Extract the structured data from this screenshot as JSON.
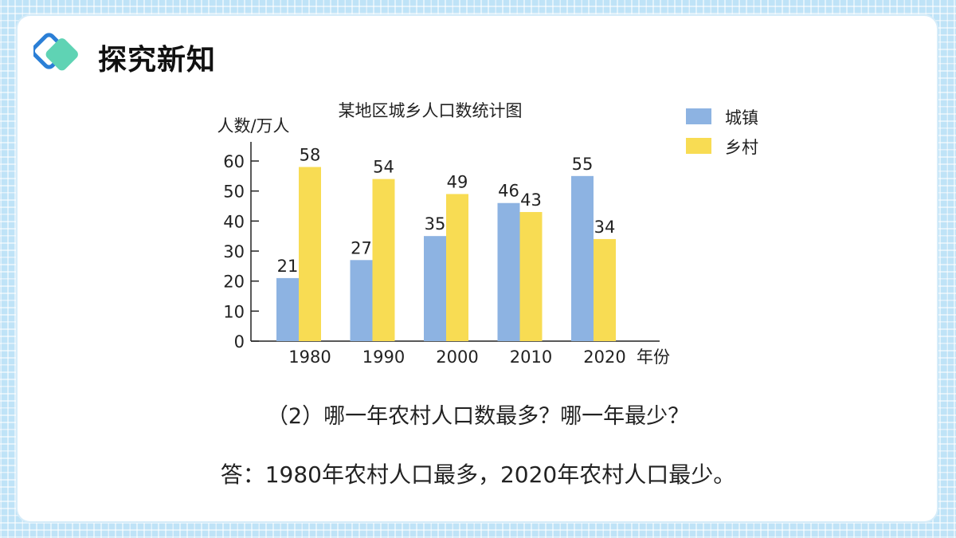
{
  "header": {
    "title": "探究新知",
    "logo_icon": "double-diamond-logo-icon"
  },
  "chart_data": {
    "type": "bar",
    "title": "某地区城乡人口数统计图",
    "ylabel": "人数/万人",
    "xlabel": "年份",
    "categories": [
      "1980",
      "1990",
      "2000",
      "2010",
      "2020"
    ],
    "series": [
      {
        "name": "城镇",
        "values": [
          21,
          27,
          35,
          46,
          55
        ],
        "color": "#8db3e2"
      },
      {
        "name": "乡村",
        "values": [
          58,
          54,
          49,
          43,
          34
        ],
        "color": "#f8dc53"
      }
    ],
    "ylim": [
      0,
      60
    ],
    "yticks": [
      0,
      10,
      20,
      30,
      40,
      50,
      60
    ],
    "grid": false,
    "legend": "top-right"
  },
  "question": "（2）哪一年农村人口数最多？哪一年最少？",
  "answer": "答：1980年农村人口最多，2020年农村人口最少。"
}
